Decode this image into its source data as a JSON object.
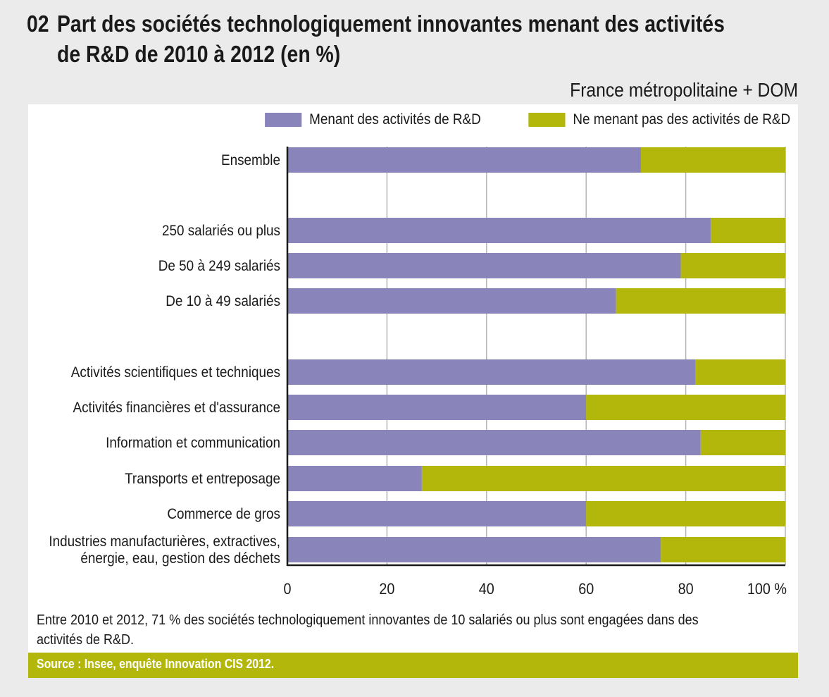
{
  "figure": {
    "number": "02",
    "title_line1": "Part des sociétés technologiquement innovantes menant des activités",
    "title_line2": "de R&D de 2010 à 2012 (en %)",
    "subtitle": "France métropolitaine + DOM",
    "note": "Entre 2010 et 2012, 71 % des sociétés technologiquement innovantes de 10 salariés ou plus sont engagées dans des activités de R&D.",
    "source": "Source : Insee, enquête Innovation CIS 2012."
  },
  "chart_data": {
    "type": "bar",
    "orientation": "horizontal",
    "stacked": true,
    "title": "Part des sociétés technologiquement innovantes menant des activités de R&D de 2010 à 2012 (en %)",
    "xlabel": "",
    "ylabel": "",
    "xlim": [
      0,
      100
    ],
    "x_ticks": [
      "0",
      "20",
      "40",
      "60",
      "80",
      "100 %"
    ],
    "grid": true,
    "legend_position": "top-right",
    "categories": [
      "Ensemble",
      "250 salariés ou plus",
      "De 50 à 249 salariés",
      "De 10 à 49 salariés",
      "Activités scientifiques et techniques",
      "Activités financières et d'assurance",
      "Information et communication",
      "Transports et entreposage",
      "Commerce de gros",
      "Industries manufacturières, extractives, énergie, eau, gestion des déchets"
    ],
    "category_lines": [
      [
        "Ensemble"
      ],
      [
        "250 salariés ou plus"
      ],
      [
        "De 50 à 249 salariés"
      ],
      [
        "De 10 à 49 salariés"
      ],
      [
        "Activités scientifiques et techniques"
      ],
      [
        "Activités financières et d'assurance"
      ],
      [
        "Information et communication"
      ],
      [
        "Transports et entreposage"
      ],
      [
        "Commerce de gros"
      ],
      [
        "Industries manufacturières, extractives,",
        "énergie, eau, gestion des déchets"
      ]
    ],
    "groups": [
      [
        0
      ],
      [
        1,
        2,
        3
      ],
      [
        4,
        5,
        6,
        7,
        8,
        9
      ]
    ],
    "series": [
      {
        "name": "Menant des activités de R&D",
        "color": "#8985ba",
        "values": [
          71,
          85,
          79,
          66,
          82,
          60,
          83,
          27,
          60,
          75
        ]
      },
      {
        "name": "Ne menant pas des activités de R&D",
        "color": "#b3b70b",
        "values": [
          29,
          15,
          21,
          34,
          18,
          40,
          17,
          73,
          40,
          25
        ]
      }
    ]
  }
}
